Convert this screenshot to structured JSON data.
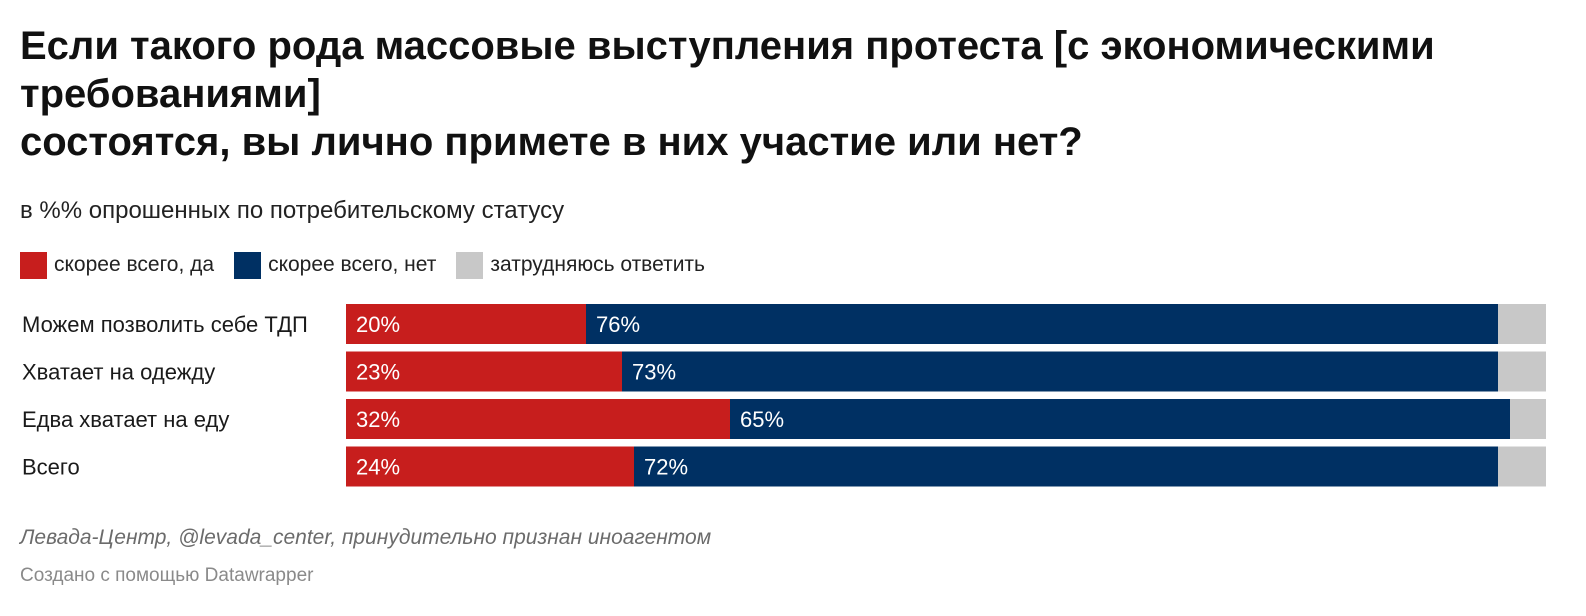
{
  "chart": {
    "title_lines": [
      "Если такого рода массовые выступления протеста [с экономическими требованиями]",
      "состоятся, вы лично примете в них участие или нет?"
    ],
    "subtitle": "в %% опрошенных по потребительскому статусу",
    "source": "Левада-Центр, @levada_center, принудительно признан иноагентом",
    "credit": "Создано с помощью Datawrapper"
  },
  "chart_data": {
    "type": "bar",
    "orientation": "horizontal",
    "stacked": true,
    "title": "Если такого рода массовые выступления протеста [с экономическими требованиями] состоятся, вы лично примете в них участие или нет?",
    "subtitle": "в %% опрошенных по потребительскому статусу",
    "categories": [
      "Можем позволить себе ТДП",
      "Хватает на одежду",
      "Едва хватает на еду",
      "Всего"
    ],
    "series": [
      {
        "name": "скорее всего, да",
        "color": "#c71e1d",
        "values": [
          20,
          23,
          32,
          24
        ],
        "labels": [
          "20%",
          "23%",
          "32%",
          "24%"
        ]
      },
      {
        "name": "скорее всего, нет",
        "color": "#003063",
        "values": [
          76,
          73,
          65,
          72
        ],
        "labels": [
          "76%",
          "73%",
          "65%",
          "72%"
        ]
      },
      {
        "name": "затрудняюсь ответить",
        "color": "#c8c8c8",
        "values": [
          4,
          4,
          3,
          4
        ]
      }
    ],
    "xlim": [
      0,
      100
    ],
    "legend_position": "top-left",
    "grid": false
  }
}
